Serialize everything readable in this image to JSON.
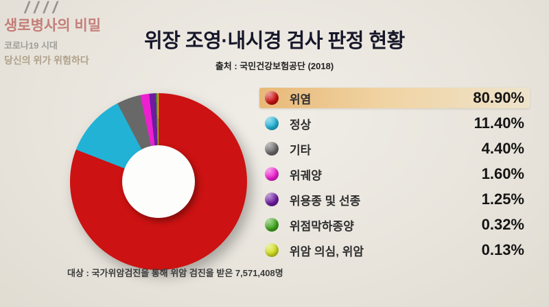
{
  "watermark": {
    "slashes": "////",
    "title": "생로병사의 비밀",
    "sub1": "코로나19 시대",
    "sub2": "당신의 위가 위험하다"
  },
  "header": {
    "title": "위장 조영·내시경 검사 판정 현황",
    "source": "출처 : 국민건강보험공단 (2018)"
  },
  "chart_data": {
    "type": "pie",
    "donut": true,
    "title": "위장 조영·내시경 검사 판정 현황",
    "categories": [
      "위염",
      "정상",
      "기타",
      "위궤양",
      "위용종 및 선종",
      "위점막하종양",
      "위암 의심, 위암"
    ],
    "values": [
      80.9,
      11.4,
      4.4,
      1.6,
      1.25,
      0.32,
      0.13
    ],
    "value_labels": [
      "80.90%",
      "11.40%",
      "4.40%",
      "1.60%",
      "1.25%",
      "0.32%",
      "0.13%"
    ],
    "colors": [
      "#cc1212",
      "#22b2d6",
      "#686868",
      "#ee1fd0",
      "#6e1ba0",
      "#3fa61c",
      "#d2de20"
    ],
    "legend_position": "right",
    "start_angle_deg": 0,
    "direction": "clockwise"
  },
  "legend": {
    "items": [
      {
        "label": "위염",
        "value": "80.90%",
        "color": "#cc1212",
        "highlighted": true
      },
      {
        "label": "정상",
        "value": "11.40%",
        "color": "#22b2d6",
        "highlighted": false
      },
      {
        "label": "기타",
        "value": "4.40%",
        "color": "#686868",
        "highlighted": false
      },
      {
        "label": "위궤양",
        "value": "1.60%",
        "color": "#ee1fd0",
        "highlighted": false
      },
      {
        "label": "위용종 및 선종",
        "value": "1.25%",
        "color": "#6e1ba0",
        "highlighted": false
      },
      {
        "label": "위점막하종양",
        "value": "0.32%",
        "color": "#3fa61c",
        "highlighted": false
      },
      {
        "label": "위암 의심, 위암",
        "value": "0.13%",
        "color": "#d2de20",
        "highlighted": false
      }
    ]
  },
  "footnote": "대상 : 국가위암검진을 통해 위암 검진을 받은 7,571,408명"
}
